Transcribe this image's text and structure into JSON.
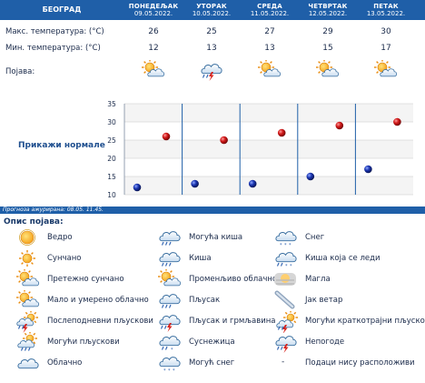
{
  "header": {
    "city": "БЕОГРАД",
    "days": [
      {
        "name": "ПОНЕДЕЉАК",
        "date": "09.05.2022."
      },
      {
        "name": "УТОРАК",
        "date": "10.05.2022."
      },
      {
        "name": "СРЕДА",
        "date": "11.05.2022."
      },
      {
        "name": "ЧЕТВРТАК",
        "date": "12.05.2022."
      },
      {
        "name": "ПЕТАК",
        "date": "13.05.2022."
      }
    ]
  },
  "rows": {
    "max_label": "Макс. температура: (°C)",
    "min_label": "Мин. температура: (°C)",
    "phen_label": "Појава:",
    "max": [
      "26",
      "25",
      "27",
      "29",
      "30"
    ],
    "min": [
      "12",
      "13",
      "13",
      "15",
      "17"
    ],
    "icons": [
      "sun-cloud-icon",
      "storm-icon",
      "sun-cloud-icon",
      "sun-cloud-icon",
      "sun-cloud-icon"
    ]
  },
  "normals_label": "Прикажи нормале",
  "updated": "Прогноза ажурирана:  08.05. 11.45.",
  "chart_data": {
    "type": "scatter",
    "categories": [
      "ПОНЕДЕЉАК",
      "УТОРАК",
      "СРЕДА",
      "ЧЕТВРТАК",
      "ПЕТАК"
    ],
    "series": [
      {
        "values": [
          26,
          25,
          27,
          29,
          30
        ],
        "color": "#c81414"
      },
      {
        "values": [
          12,
          13,
          13,
          15,
          17
        ],
        "color": "#14289a"
      }
    ],
    "yticks": [
      "35",
      "30",
      "25",
      "20",
      "15",
      "10"
    ],
    "ylim": [
      10,
      35
    ],
    "grid": true
  },
  "legend": {
    "title": "Опис појава:",
    "items": [
      {
        "icon": "sun-icon",
        "label": "Ведро"
      },
      {
        "icon": "sun-full-icon",
        "label": "Сунчано"
      },
      {
        "icon": "sun-cloud-icon",
        "label": "Претежно сунчано"
      },
      {
        "icon": "sun-cloud-icon",
        "label": "Мало и умерено облачно"
      },
      {
        "icon": "afternoon-storm-icon",
        "label": "Послеподневни пљускови"
      },
      {
        "icon": "sun-showers-icon",
        "label": "Могући пљускови"
      },
      {
        "icon": "cloud-icon",
        "label": "Облачно"
      },
      {
        "icon": "cloud-rain-icon",
        "label": "Могућа киша"
      },
      {
        "icon": "cloud-rain-icon",
        "label": "Киша"
      },
      {
        "icon": "sun-cloud-icon",
        "label": "Променљиво облачно"
      },
      {
        "icon": "cloud-rain-icon",
        "label": "Пљусак"
      },
      {
        "icon": "storm-icon",
        "label": "Пљусак и грмљавина"
      },
      {
        "icon": "cloud-drizzle-icon",
        "label": "Суснежица"
      },
      {
        "icon": "cloud-snow-icon",
        "label": "Могућ снег"
      },
      {
        "icon": "cloud-snow-icon",
        "label": "Снег"
      },
      {
        "icon": "cloud-sleet-icon",
        "label": "Киша која се леди"
      },
      {
        "icon": "fog-icon",
        "label": "Магла"
      },
      {
        "icon": "wind-icon",
        "label": "Јак ветар"
      },
      {
        "icon": "sun-storm-icon",
        "label": "Могући краткотрајни пљускови"
      },
      {
        "icon": "storm-icon",
        "label": "Непогоде"
      },
      {
        "icon": "no-data-icon",
        "label": "Подаци нису расположиви",
        "symbol": "-"
      }
    ]
  }
}
